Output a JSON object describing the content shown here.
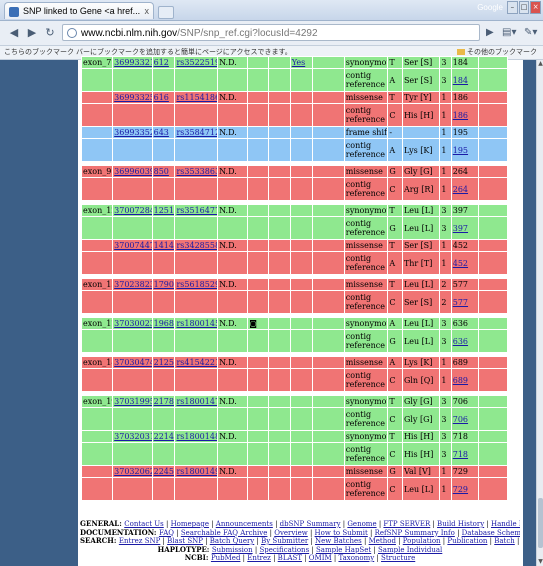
{
  "browser": {
    "tab_title": "SNP linked to Gene <a href...",
    "tab_close": "x",
    "brand": "Google",
    "url_host": "www.ncbi.nlm.nih.gov",
    "url_path": "/SNP/snp_ref.cgi?locusId=4292",
    "bookmarks_message": "こちらのブックマーク バーにブックマークを追加すると簡単にページにアクセスできます。",
    "other_bookmarks": "その他のブックマーク"
  },
  "colors": {
    "exon_green": "#8fe88f",
    "exon_red": "#f07474",
    "exon_blue": "#8fc6f5",
    "sidebar": "#3c5f87",
    "link": "#1a1aa6"
  },
  "rows": [
    {
      "t": "g",
      "exon": "exon_7",
      "pos1": "36993321",
      "pos2": "612",
      "rs": "rs35225190",
      "val": "N.D.",
      "v1": "",
      "v2": "",
      "yes": "Yes",
      "func": "synonymous",
      "nt": "T",
      "aa": "Ser [S]",
      "codon": "3",
      "apos": "184",
      "aplink": false
    },
    {
      "t": "g",
      "exon": "",
      "pos1": "",
      "pos2": "",
      "rs": "",
      "val": "",
      "v1": "",
      "v2": "",
      "yes": "",
      "func": "contig reference",
      "nt": "A",
      "aa": "Ser [S]",
      "codon": "3",
      "apos": "184",
      "aplink": true
    },
    {
      "t": "r",
      "exon": "",
      "pos1": "36993325",
      "pos2": "616",
      "rs": "rs11541862",
      "val": "N.D.",
      "v1": "",
      "v2": "",
      "yes": "",
      "func": "missense",
      "nt": "T",
      "aa": "Tyr [Y]",
      "codon": "1",
      "apos": "186",
      "aplink": false
    },
    {
      "t": "r",
      "exon": "",
      "pos1": "",
      "pos2": "",
      "rs": "",
      "val": "",
      "v1": "",
      "v2": "",
      "yes": "",
      "func": "contig reference",
      "nt": "C",
      "aa": "His [H]",
      "codon": "1",
      "apos": "186",
      "aplink": true
    },
    {
      "t": "b",
      "exon": "",
      "pos1": "36993352",
      "pos2": "643",
      "rs": "rs35847123",
      "val": "N.D.",
      "v1": "",
      "v2": "",
      "yes": "",
      "func": "frame shift",
      "nt": "-",
      "aa": "",
      "codon": "1",
      "apos": "195",
      "aplink": false
    },
    {
      "t": "b",
      "exon": "",
      "pos1": "",
      "pos2": "",
      "rs": "",
      "val": "",
      "v1": "",
      "v2": "",
      "yes": "",
      "func": "contig reference",
      "nt": "A",
      "aa": "Lys [K]",
      "codon": "1",
      "apos": "195",
      "aplink": true
    },
    {
      "t": "gap"
    },
    {
      "t": "r",
      "exon": "exon_9",
      "pos1": "36996039",
      "pos2": "850",
      "rs": "rs35338630",
      "val": "N.D.",
      "v1": "",
      "v2": "",
      "yes": "",
      "func": "missense",
      "nt": "G",
      "aa": "Gly [G]",
      "codon": "1",
      "apos": "264",
      "aplink": false
    },
    {
      "t": "r",
      "exon": "",
      "pos1": "",
      "pos2": "",
      "rs": "",
      "val": "",
      "v1": "",
      "v2": "",
      "yes": "",
      "func": "contig reference",
      "nt": "C",
      "aa": "Arg [R]",
      "codon": "1",
      "apos": "264",
      "aplink": true
    },
    {
      "t": "gap"
    },
    {
      "t": "g",
      "exon": "exon_12",
      "pos1": "37007284",
      "pos2": "1251",
      "rs": "rs35164771",
      "val": "N.D.",
      "v1": "",
      "v2": "",
      "yes": "",
      "func": "synonymous",
      "nt": "T",
      "aa": "Leu [L]",
      "codon": "3",
      "apos": "397",
      "aplink": false
    },
    {
      "t": "g",
      "exon": "",
      "pos1": "",
      "pos2": "",
      "rs": "",
      "val": "",
      "v1": "",
      "v2": "",
      "yes": "",
      "func": "contig reference",
      "nt": "G",
      "aa": "Leu [L]",
      "codon": "3",
      "apos": "397",
      "aplink": true
    },
    {
      "t": "r",
      "exon": "",
      "pos1": "37007447",
      "pos2": "1414",
      "rs": "rs34285587",
      "val": "N.D.",
      "v1": "",
      "v2": "",
      "yes": "",
      "func": "missense",
      "nt": "T",
      "aa": "Ser [S]",
      "codon": "1",
      "apos": "452",
      "aplink": false
    },
    {
      "t": "r",
      "exon": "",
      "pos1": "",
      "pos2": "",
      "rs": "",
      "val": "",
      "v1": "",
      "v2": "",
      "yes": "",
      "func": "contig reference",
      "nt": "A",
      "aa": "Thr [T]",
      "codon": "1",
      "apos": "452",
      "aplink": true
    },
    {
      "t": "gap"
    },
    {
      "t": "r",
      "exon": "exon_15",
      "pos1": "37023823",
      "pos2": "1790",
      "rs": "rs56185292",
      "val": "N.D.",
      "v1": "",
      "v2": "",
      "yes": "",
      "func": "missense",
      "nt": "T",
      "aa": "Leu [L]",
      "codon": "2",
      "apos": "577",
      "aplink": false
    },
    {
      "t": "r",
      "exon": "",
      "pos1": "",
      "pos2": "",
      "rs": "",
      "val": "",
      "v1": "",
      "v2": "",
      "yes": "",
      "func": "contig reference",
      "nt": "C",
      "aa": "Ser [S]",
      "codon": "2",
      "apos": "577",
      "aplink": true
    },
    {
      "t": "gap"
    },
    {
      "t": "g",
      "exon": "exon_17",
      "pos1": "37030023",
      "pos2": "1968",
      "rs": "rs1800145",
      "val": "N.D.",
      "v1": "◙",
      "v2": "",
      "yes": "",
      "func": "synonymous",
      "nt": "A",
      "aa": "Leu [L]",
      "codon": "3",
      "apos": "636",
      "aplink": false
    },
    {
      "t": "g",
      "exon": "",
      "pos1": "",
      "pos2": "",
      "rs": "",
      "val": "",
      "v1": "",
      "v2": "",
      "yes": "",
      "func": "contig reference",
      "nt": "G",
      "aa": "Leu [L]",
      "codon": "3",
      "apos": "636",
      "aplink": true
    },
    {
      "t": "gap"
    },
    {
      "t": "r",
      "exon": "exon_18",
      "pos1": "37030474",
      "pos2": "2125",
      "rs": "rs41542214",
      "val": "N.D.",
      "v1": "",
      "v2": "",
      "yes": "",
      "func": "missense",
      "nt": "A",
      "aa": "Lys [K]",
      "codon": "1",
      "apos": "689",
      "aplink": false
    },
    {
      "t": "r",
      "exon": "",
      "pos1": "",
      "pos2": "",
      "rs": "",
      "val": "",
      "v1": "",
      "v2": "",
      "yes": "",
      "func": "contig reference",
      "nt": "C",
      "aa": "Gln [Q]",
      "codon": "1",
      "apos": "689",
      "aplink": true
    },
    {
      "t": "gap"
    },
    {
      "t": "g",
      "exon": "exon_19",
      "pos1": "37031995",
      "pos2": "2178",
      "rs": "rs1800147",
      "val": "N.D.",
      "v1": "",
      "v2": "",
      "yes": "",
      "func": "synonymous",
      "nt": "T",
      "aa": "Gly [G]",
      "codon": "3",
      "apos": "706",
      "aplink": false
    },
    {
      "t": "g",
      "exon": "",
      "pos1": "",
      "pos2": "",
      "rs": "",
      "val": "",
      "v1": "",
      "v2": "",
      "yes": "",
      "func": "contig reference",
      "nt": "C",
      "aa": "Gly [G]",
      "codon": "3",
      "apos": "706",
      "aplink": true
    },
    {
      "t": "g",
      "exon": "",
      "pos1": "37032031",
      "pos2": "2214",
      "rs": "rs1800148",
      "val": "N.D.",
      "v1": "",
      "v2": "",
      "yes": "",
      "func": "synonymous",
      "nt": "T",
      "aa": "His [H]",
      "codon": "3",
      "apos": "718",
      "aplink": false
    },
    {
      "t": "g",
      "exon": "",
      "pos1": "",
      "pos2": "",
      "rs": "",
      "val": "",
      "v1": "",
      "v2": "",
      "yes": "",
      "func": "contig reference",
      "nt": "C",
      "aa": "His [H]",
      "codon": "3",
      "apos": "718",
      "aplink": true
    },
    {
      "t": "r",
      "exon": "",
      "pos1": "37032062",
      "pos2": "2245",
      "rs": "rs1800149",
      "val": "N.D.",
      "v1": "",
      "v2": "",
      "yes": "",
      "func": "missense",
      "nt": "G",
      "aa": "Val [V]",
      "codon": "1",
      "apos": "729",
      "aplink": false
    },
    {
      "t": "r",
      "exon": "",
      "pos1": "",
      "pos2": "",
      "rs": "",
      "val": "",
      "v1": "",
      "v2": "",
      "yes": "",
      "func": "contig reference",
      "nt": "C",
      "aa": "Leu [L]",
      "codon": "1",
      "apos": "729",
      "aplink": true
    }
  ],
  "footer": [
    {
      "label": "GENERAL:",
      "links": [
        "Contact Us",
        "Homepage",
        "Announcements",
        "dbSNP Summary",
        "Genome",
        "FTP SERVER",
        "Build History",
        "Handle Request"
      ]
    },
    {
      "label": "DOCUMENTATION:",
      "links": [
        "FAQ",
        "Searchable FAQ Archive",
        "Overview",
        "How to Submit",
        "RefSNP Summary Info",
        "Database Schema"
      ]
    },
    {
      "label": "SEARCH:",
      "links": [
        "Entrez SNP",
        "Blast SNP",
        "Batch Query",
        "By Submitter",
        "New Batches",
        "Method",
        "Population",
        "Publication",
        "Batch",
        "Locus Info",
        "Between Marker"
      ]
    },
    {
      "label": "HAPLOTYPE:",
      "links": [
        "Submission",
        "Specifications",
        "Sample HapSet",
        "Sample Individual"
      ]
    },
    {
      "label": "NCBI:",
      "links": [
        "PubMed",
        "Entrez",
        "BLAST",
        "OMIM",
        "Taxonomy",
        "Structure"
      ]
    }
  ]
}
